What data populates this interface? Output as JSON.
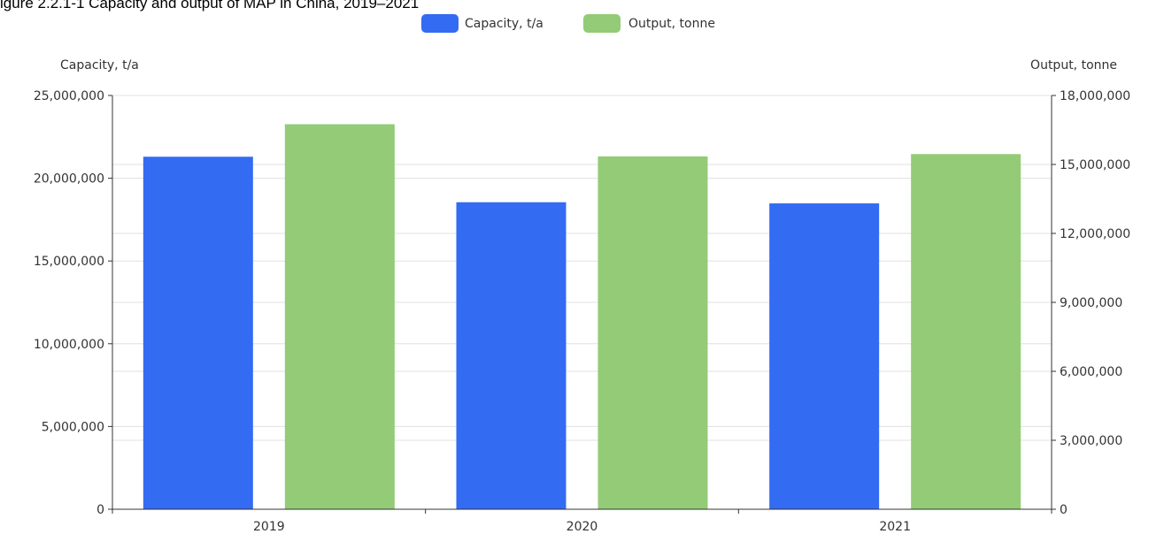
{
  "title": "igure 2.2.1-1 Capacity and output of MAP in China, 2019–2021",
  "chart_data": {
    "type": "bar",
    "categories": [
      "2019",
      "2020",
      "2021"
    ],
    "series": [
      {
        "name": "Capacity, t/a",
        "axis": "left",
        "color": "#336BF2",
        "values": [
          21300000,
          18550000,
          18480000
        ]
      },
      {
        "name": "Output, tonne",
        "axis": "right",
        "color": "#93CB76",
        "values": [
          16750000,
          15350000,
          15450000
        ]
      }
    ],
    "left_axis": {
      "label": "Capacity, t/a",
      "min": 0,
      "max": 25000000,
      "ticks": [
        0,
        5000000,
        10000000,
        15000000,
        20000000,
        25000000
      ],
      "tick_labels": [
        "0",
        "5,000,000",
        "10,000,000",
        "15,000,000",
        "20,000,000",
        "25,000,000"
      ]
    },
    "right_axis": {
      "label": "Output, tonne",
      "min": 0,
      "max": 18000000,
      "ticks": [
        0,
        3000000,
        6000000,
        9000000,
        12000000,
        15000000,
        18000000
      ],
      "tick_labels": [
        "0",
        "3,000,000",
        "6,000,000",
        "9,000,000",
        "12,000,000",
        "15,000,000",
        "18,000,000"
      ]
    },
    "grid": true,
    "legend_position": "top-center"
  }
}
